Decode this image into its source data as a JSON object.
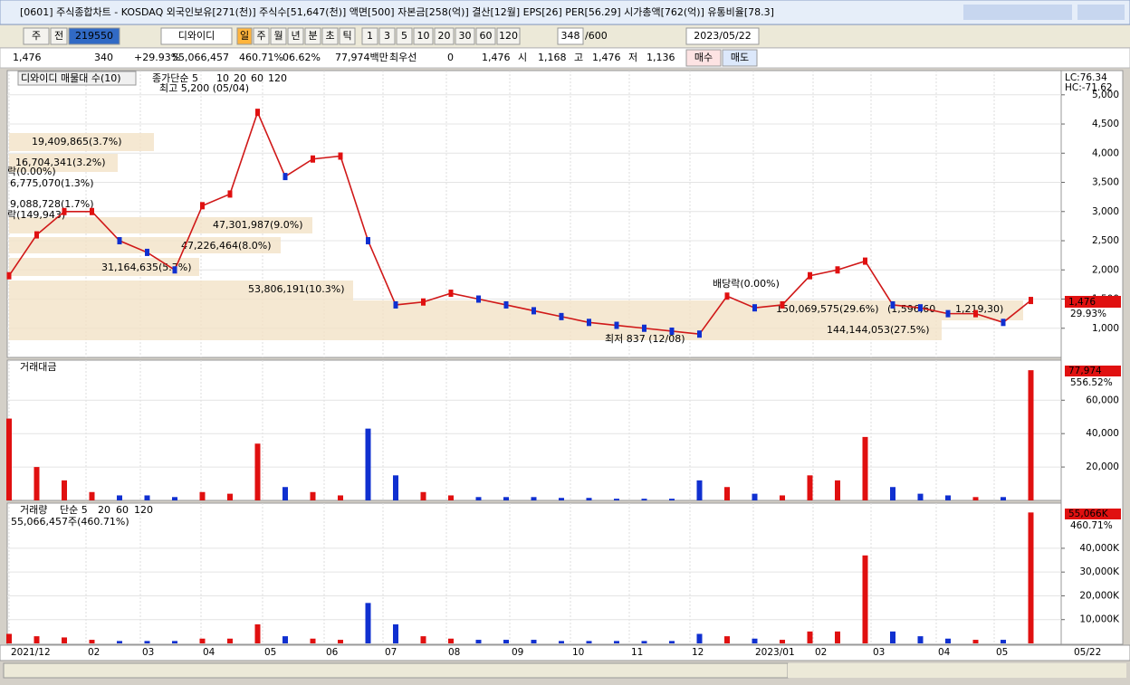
{
  "title_bar": {
    "title": "[0601] 주식종합차트 - KOSDAQ 외국인보유[271(천)] 주식수[51,647(천)] 액면[500] 자본금[258(억)] 결산[12월] EPS[26] PER[56.29] 시가총액[762(억)] 유통비율[78.3]"
  },
  "toolbar": {
    "period": "주",
    "adjust": "전",
    "code": "219550",
    "name": "디와이디",
    "intervals": [
      "일",
      "주",
      "월",
      "년",
      "분",
      "초",
      "틱"
    ],
    "minutes": [
      "1",
      "3",
      "5",
      "10",
      "20",
      "30",
      "60",
      "120"
    ],
    "count": "348",
    "max": "/600",
    "date": "2023/05/22"
  },
  "quote": {
    "items": [
      "1,476",
      "340",
      "+29.93%",
      "55,066,457",
      "460.71%",
      "06.62%",
      "77,974백만",
      "최우선",
      "0",
      "1,476",
      "시",
      "1,168",
      "고",
      "1,476",
      "저",
      "1,136"
    ],
    "buttons": [
      "매수",
      "매도"
    ]
  },
  "price_panel": {
    "legend_box": "디와이디 매물대 수(10)",
    "ma_label": "종가단순 5",
    "ma_periods": [
      "10",
      "20",
      "60",
      "120"
    ],
    "high_note": "최고 5,200 (05/04)",
    "low_note": "최저 837 (12/08)",
    "annotations": [
      "19,409,865(3.7%)",
      "16,704,341(3.2%)",
      "락(0.00%)",
      "6,775,070(1.3%)",
      "9,088,728(1.7%)",
      "락(149,943)",
      "47,301,987(9.0%)",
      "47,226,464(8.0%)",
      "31,164,635(5.7%)",
      "53,806,191(10.3%)",
      "배당락(0.00%)",
      "150,069,575(29.6%)",
      "(1,596,60",
      "1,219,30)",
      "144,144,053(27.5%)"
    ],
    "lc": "LC:76.34",
    "hc": "HC:-71.62",
    "last": "1,476",
    "change": "29.93%",
    "ylim": [
      500,
      5400
    ],
    "yticks": [
      {
        "value": 1000,
        "label": "1,000"
      },
      {
        "value": 1500,
        "label": "1,500"
      },
      {
        "value": 2000,
        "label": "2,000"
      },
      {
        "value": 2500,
        "label": "2,500"
      },
      {
        "value": 3000,
        "label": "3,000"
      },
      {
        "value": 3500,
        "label": "3,500"
      },
      {
        "value": 4000,
        "label": "4,000"
      },
      {
        "value": 4500,
        "label": "4,500"
      },
      {
        "value": 5000,
        "label": "5,000"
      }
    ],
    "closes": [
      1900,
      2600,
      3000,
      3000,
      2500,
      2300,
      2000,
      3100,
      3300,
      4700,
      3600,
      3900,
      3950,
      2500,
      1400,
      1450,
      1600,
      1500,
      1400,
      1300,
      1200,
      1100,
      1050,
      1000,
      950,
      900,
      1550,
      1350,
      1400,
      1900,
      2000,
      2150,
      1400,
      1350,
      1250,
      1250,
      1100,
      1476
    ]
  },
  "value_panel": {
    "title": "거래대금",
    "last": "77,974",
    "change": "556.52%",
    "ylim": [
      0,
      84000
    ],
    "yticks": [
      {
        "value": 20000,
        "label": "20,000"
      },
      {
        "value": 40000,
        "label": "40,000"
      },
      {
        "value": 60000,
        "label": "60,000"
      }
    ],
    "values": [
      49000,
      20000,
      12000,
      5000,
      3000,
      3000,
      2000,
      5000,
      4000,
      34000,
      8000,
      5000,
      3000,
      43000,
      15000,
      5000,
      3000,
      2000,
      2000,
      2000,
      1500,
      1500,
      1000,
      1000,
      1000,
      12000,
      8000,
      4000,
      3000,
      15000,
      12000,
      38000,
      8000,
      4000,
      3000,
      2000,
      2000,
      77974
    ]
  },
  "volume_panel": {
    "title": "거래량",
    "ma_label": "단순 5",
    "ma_periods": [
      "20",
      "60",
      "120"
    ],
    "summary": "55,066,457주(460.71%)",
    "last": "55,066K",
    "change": "460.71%",
    "ylim": [
      0,
      59000
    ],
    "yticks": [
      {
        "value": 10000,
        "label": "10,000K"
      },
      {
        "value": 20000,
        "label": "20,000K"
      },
      {
        "value": 30000,
        "label": "30,000K"
      },
      {
        "value": 40000,
        "label": "40,000K"
      }
    ],
    "values": [
      4000,
      3000,
      2500,
      1500,
      1000,
      1000,
      1000,
      2000,
      2000,
      8000,
      3000,
      2000,
      1500,
      17000,
      8000,
      3000,
      2000,
      1500,
      1500,
      1500,
      1000,
      1000,
      1000,
      1000,
      1000,
      4000,
      3000,
      2000,
      1500,
      5000,
      5000,
      37000,
      5000,
      3000,
      2000,
      1500,
      1500,
      55066
    ]
  },
  "x_axis": {
    "labels": [
      "2021/12",
      "02",
      "03",
      "04",
      "05",
      "06",
      "07",
      "08",
      "09",
      "10",
      "11",
      "12",
      "2023/01",
      "02",
      "03",
      "04",
      "05"
    ],
    "end_label": "05/22"
  }
}
